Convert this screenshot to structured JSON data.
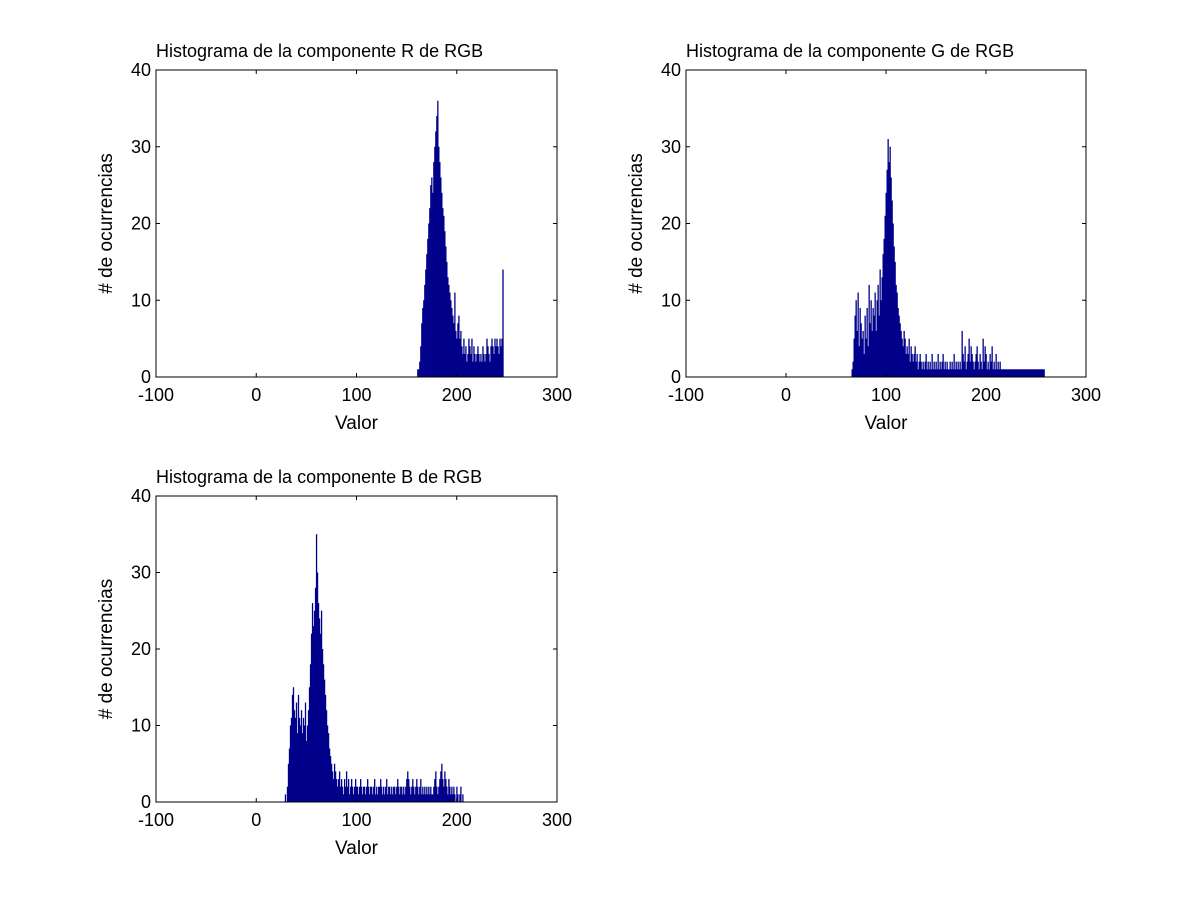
{
  "figure": {
    "background": "#ffffff",
    "bar_color": "#00008b",
    "axes_color": "#000000"
  },
  "chart_data": [
    {
      "type": "bar",
      "title": "Histograma de la componente R de RGB",
      "xlabel": "Valor",
      "ylabel": "# de ocurrencias",
      "xlim": [
        -100,
        300
      ],
      "ylim": [
        0,
        40
      ],
      "xticks": [
        -100,
        0,
        100,
        200,
        300
      ],
      "yticks": [
        0,
        10,
        20,
        30,
        40
      ],
      "bin_start": 161,
      "counts": [
        1,
        1,
        2,
        4,
        7,
        9,
        10,
        12,
        14,
        16,
        18,
        20,
        22,
        25,
        26,
        24,
        28,
        30,
        32,
        34,
        36,
        30,
        28,
        26,
        24,
        22,
        21,
        19,
        17,
        15,
        13,
        12,
        11,
        10,
        9,
        8,
        7,
        11,
        6,
        5,
        7,
        8,
        5,
        6,
        4,
        3,
        5,
        3,
        4,
        2,
        3,
        5,
        4,
        3,
        5,
        2,
        4,
        3,
        2,
        3,
        4,
        3,
        2,
        3,
        2,
        4,
        3,
        2,
        3,
        5,
        4,
        3,
        2,
        4,
        5,
        4,
        3,
        5,
        4,
        5,
        4,
        3,
        5,
        4,
        5,
        14
      ]
    },
    {
      "type": "bar",
      "title": "Histograma de la componente G de RGB",
      "xlabel": "Valor",
      "ylabel": "# de ocurrencias",
      "xlim": [
        -100,
        300
      ],
      "ylim": [
        0,
        40
      ],
      "xticks": [
        -100,
        0,
        100,
        200,
        300
      ],
      "yticks": [
        0,
        10,
        20,
        30,
        40
      ],
      "bin_start": 66,
      "counts": [
        1,
        2,
        5,
        8,
        10,
        6,
        11,
        4,
        9,
        7,
        5,
        6,
        3,
        8,
        5,
        9,
        4,
        12,
        7,
        10,
        6,
        9,
        8,
        11,
        6,
        10,
        12,
        8,
        14,
        10,
        13,
        16,
        18,
        21,
        24,
        27,
        31,
        28,
        30,
        26,
        23,
        20,
        17,
        15,
        12,
        11,
        9,
        8,
        7,
        6,
        5,
        4,
        6,
        5,
        3,
        4,
        3,
        5,
        2,
        4,
        3,
        2,
        3,
        4,
        2,
        3,
        1,
        2,
        3,
        2,
        1,
        2,
        1,
        2,
        3,
        1,
        2,
        1,
        2,
        1,
        3,
        1,
        2,
        1,
        2,
        1,
        3,
        1,
        2,
        1,
        2,
        3,
        1,
        2,
        1,
        2,
        1,
        1,
        2,
        1,
        2,
        1,
        3,
        1,
        2,
        1,
        2,
        1,
        2,
        1,
        6,
        3,
        2,
        4,
        1,
        2,
        3,
        5,
        2,
        4,
        3,
        2,
        1,
        2,
        3,
        4,
        2,
        1,
        3,
        2,
        1,
        5,
        2,
        4,
        3,
        1,
        2,
        1,
        3,
        2,
        4,
        1,
        2,
        1,
        3,
        1,
        2,
        1,
        2,
        1,
        1,
        1,
        1,
        1,
        1,
        1,
        1,
        1,
        1,
        1,
        1,
        1,
        1,
        1,
        1,
        1,
        1,
        1,
        1,
        1,
        1,
        1,
        1,
        1,
        1,
        1,
        1,
        1,
        1,
        1,
        1,
        1,
        1,
        1,
        1,
        1,
        1,
        1,
        1,
        1,
        1,
        1,
        1
      ]
    },
    {
      "type": "bar",
      "title": "Histograma de la componente B de RGB",
      "xlabel": "Valor",
      "ylabel": "# de ocurrencias",
      "xlim": [
        -100,
        300
      ],
      "ylim": [
        0,
        40
      ],
      "xticks": [
        -100,
        0,
        100,
        200,
        300
      ],
      "yticks": [
        0,
        10,
        20,
        30,
        40
      ],
      "bin_start": 29,
      "counts": [
        1,
        0,
        2,
        5,
        7,
        10,
        11,
        14,
        15,
        12,
        11,
        13,
        9,
        14,
        11,
        10,
        12,
        9,
        11,
        10,
        13,
        8,
        10,
        12,
        15,
        18,
        22,
        26,
        23,
        25,
        28,
        35,
        30,
        26,
        24,
        22,
        25,
        20,
        18,
        16,
        14,
        12,
        10,
        9,
        7,
        6,
        5,
        4,
        3,
        5,
        4,
        3,
        2,
        3,
        4,
        2,
        3,
        2,
        1,
        3,
        2,
        4,
        2,
        3,
        1,
        2,
        3,
        2,
        1,
        2,
        3,
        2,
        2,
        1,
        2,
        3,
        2,
        1,
        2,
        2,
        1,
        2,
        3,
        2,
        1,
        2,
        2,
        1,
        2,
        3,
        1,
        2,
        1,
        2,
        2,
        3,
        2,
        1,
        2,
        1,
        2,
        3,
        1,
        2,
        2,
        1,
        2,
        1,
        2,
        2,
        1,
        2,
        3,
        2,
        1,
        2,
        2,
        1,
        2,
        1,
        2,
        3,
        4,
        3,
        2,
        1,
        2,
        3,
        2,
        1,
        2,
        3,
        2,
        1,
        2,
        3,
        1,
        2,
        1,
        2,
        1,
        2,
        1,
        2,
        1,
        2,
        1,
        1,
        2,
        3,
        4,
        2,
        1,
        2,
        3,
        4,
        5,
        3,
        2,
        4,
        3,
        2,
        1,
        3,
        2,
        1,
        2,
        1,
        2,
        1,
        0,
        2,
        1,
        0,
        1,
        2,
        0,
        1
      ]
    }
  ]
}
